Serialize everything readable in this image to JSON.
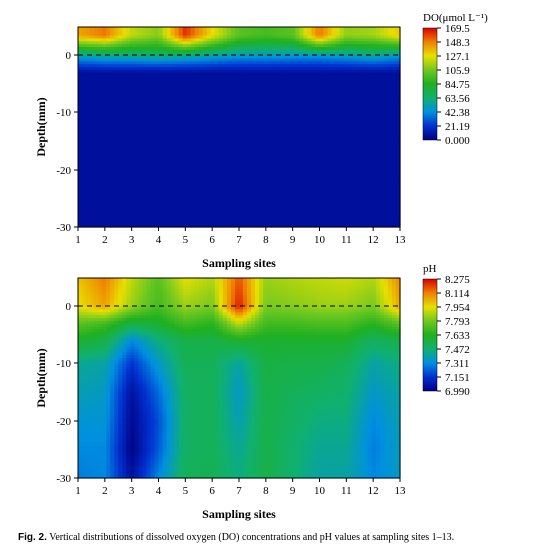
{
  "caption": {
    "label": "Fig. 2.",
    "text": "Vertical distributions of dissolved oxygen (DO) concentrations and pH values at sampling sites 1–13."
  },
  "chart_data": [
    {
      "type": "heatmap",
      "xlabel": "Sampling sites",
      "ylabel": "Depth(mm)",
      "x": [
        1,
        2,
        3,
        4,
        5,
        6,
        7,
        8,
        9,
        10,
        11,
        12,
        13
      ],
      "xlim": [
        1,
        13
      ],
      "ylim": [
        -30,
        5
      ],
      "x_ticks": [
        "1",
        "2",
        "3",
        "4",
        "5",
        "6",
        "7",
        "8",
        "9",
        "10",
        "11",
        "12",
        "13"
      ],
      "y_ticks": [
        "0",
        "-10",
        "-20",
        "-30"
      ],
      "interface_line": {
        "y": 0,
        "style": "dashed"
      },
      "colorbar": {
        "title": "DO(μmol L⁻¹)",
        "ticks": [
          "169.5",
          "148.3",
          "127.1",
          "105.9",
          "84.75",
          "63.56",
          "42.38",
          "21.19",
          "0.000"
        ],
        "min": 0,
        "max": 169.5
      },
      "surface_values": [
        140,
        150,
        120,
        110,
        162,
        128,
        100,
        95,
        100,
        150,
        112,
        115,
        132
      ],
      "interface_values": [
        55,
        60,
        62,
        66,
        62,
        55,
        50,
        50,
        48,
        48,
        52,
        58,
        50
      ],
      "deep_value": 7,
      "colors": {
        "low": "#0a14a0",
        "high": "#cc0000"
      }
    },
    {
      "type": "heatmap",
      "xlabel": "Sampling sites",
      "ylabel": "Depth(mm)",
      "x": [
        1,
        2,
        3,
        4,
        5,
        6,
        7,
        8,
        9,
        10,
        11,
        12,
        13
      ],
      "xlim": [
        1,
        13
      ],
      "ylim": [
        -30,
        5
      ],
      "x_ticks": [
        "1",
        "2",
        "3",
        "4",
        "5",
        "6",
        "7",
        "8",
        "9",
        "10",
        "11",
        "12",
        "13"
      ],
      "y_ticks": [
        "0",
        "-10",
        "-20",
        "-30"
      ],
      "interface_line": {
        "y": 0,
        "style": "dashed"
      },
      "colorbar": {
        "title": "pH",
        "ticks": [
          "8.275",
          "8.114",
          "7.954",
          "7.793",
          "7.633",
          "7.472",
          "7.311",
          "7.151",
          "6.990"
        ],
        "min": 6.99,
        "max": 8.275
      },
      "profiles": [
        {
          "site": 1,
          "values": [
            8.0,
            7.95,
            7.75,
            7.6,
            7.42,
            7.38,
            7.33,
            7.3,
            7.28
          ]
        },
        {
          "site": 2,
          "values": [
            8.12,
            8.05,
            7.7,
            7.55,
            7.4,
            7.35,
            7.33,
            7.3,
            7.3
          ]
        },
        {
          "site": 3,
          "values": [
            7.9,
            7.85,
            7.55,
            7.3,
            7.15,
            7.05,
            7.02,
            7.0,
            7.05
          ]
        },
        {
          "site": 4,
          "values": [
            7.75,
            7.7,
            7.6,
            7.45,
            7.35,
            7.25,
            7.2,
            7.22,
            7.3
          ]
        },
        {
          "site": 5,
          "values": [
            7.95,
            7.85,
            7.7,
            7.55,
            7.52,
            7.5,
            7.5,
            7.5,
            7.52
          ]
        },
        {
          "site": 6,
          "values": [
            7.88,
            7.8,
            7.65,
            7.55,
            7.52,
            7.52,
            7.52,
            7.52,
            7.53
          ]
        },
        {
          "site": 7,
          "values": [
            8.17,
            8.25,
            7.9,
            7.6,
            7.4,
            7.35,
            7.38,
            7.42,
            7.45
          ]
        },
        {
          "site": 8,
          "values": [
            7.85,
            7.8,
            7.7,
            7.6,
            7.56,
            7.55,
            7.55,
            7.55,
            7.55
          ]
        },
        {
          "site": 9,
          "values": [
            7.88,
            7.82,
            7.7,
            7.6,
            7.55,
            7.52,
            7.5,
            7.48,
            7.48
          ]
        },
        {
          "site": 10,
          "values": [
            7.9,
            7.85,
            7.72,
            7.6,
            7.55,
            7.5,
            7.45,
            7.42,
            7.4
          ]
        },
        {
          "site": 11,
          "values": [
            7.92,
            7.85,
            7.72,
            7.6,
            7.52,
            7.48,
            7.45,
            7.42,
            7.4
          ]
        },
        {
          "site": 12,
          "values": [
            7.88,
            7.8,
            7.65,
            7.5,
            7.4,
            7.35,
            7.3,
            7.28,
            7.3
          ]
        },
        {
          "site": 13,
          "values": [
            8.1,
            8.05,
            7.75,
            7.55,
            7.45,
            7.4,
            7.38,
            7.36,
            7.35
          ]
        }
      ],
      "profile_depths": [
        5,
        0,
        -3,
        -6,
        -10,
        -15,
        -20,
        -25,
        -30
      ]
    }
  ]
}
